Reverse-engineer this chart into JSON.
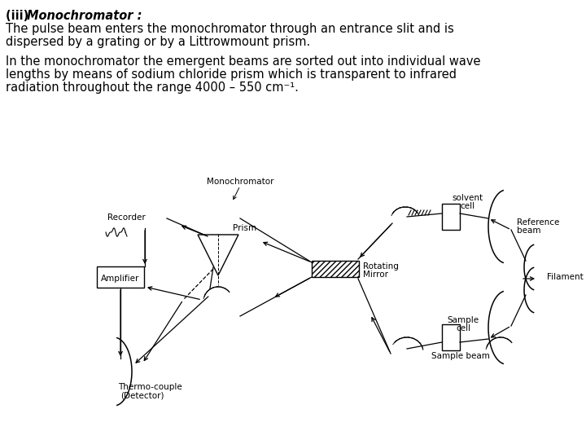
{
  "bg_color": "#ffffff",
  "text_color": "#000000",
  "fig_width": 7.2,
  "fig_height": 5.4,
  "dpi": 100,
  "title_plain": "(iii) ",
  "title_bold_italic": "Monochromator :",
  "para1_line1": "The pulse beam enters the monochromator through an entrance slit and is",
  "para1_line2": "dispersed by a grating or by a Littrowmount prism.",
  "para2_line1": "In the monochromator the emergent beams are sorted out into individual wave",
  "para2_line2": "lengths by means of sodium chloride prism which is transparent to infrared",
  "para2_line3": "radiation throughout the range 4000 – 550 cm⁻¹.",
  "fontsize_text": 10.5,
  "fontsize_diagram": 7.5
}
